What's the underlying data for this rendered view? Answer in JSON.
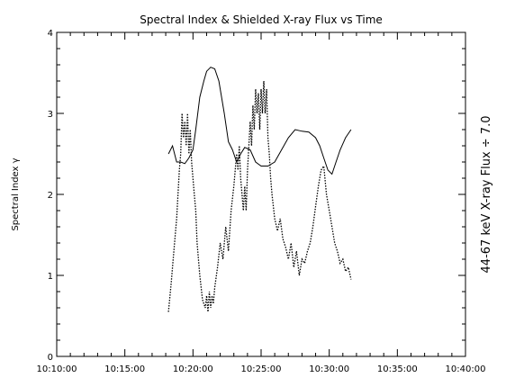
{
  "chart_data": {
    "type": "line",
    "title": "Spectral Index & Shielded X-ray Flux vs Time",
    "ylabel": "Spectral Index γ",
    "ylabel_right": "44-67 keV X-ray Flux ÷ 7.0",
    "xlim": [
      610,
      640
    ],
    "ylim": [
      0,
      4
    ],
    "x_unit": "minutes after 10:00:00",
    "x_ticks": [
      {
        "value": 610,
        "label": "10:10:00"
      },
      {
        "value": 615,
        "label": "10:15:00"
      },
      {
        "value": 620,
        "label": "10:20:00"
      },
      {
        "value": 625,
        "label": "10:25:00"
      },
      {
        "value": 630,
        "label": "10:30:00"
      },
      {
        "value": 635,
        "label": "10:35:00"
      },
      {
        "value": 640,
        "label": "10:40:00"
      }
    ],
    "y_ticks": [
      {
        "value": 0,
        "label": "0"
      },
      {
        "value": 1,
        "label": "1"
      },
      {
        "value": 2,
        "label": "2"
      },
      {
        "value": 3,
        "label": "3"
      },
      {
        "value": 4,
        "label": "4"
      }
    ],
    "grid": false,
    "series": [
      {
        "style": "solid",
        "x": [
          618.2,
          618.5,
          618.8,
          619.1,
          619.4,
          619.7,
          620.0,
          620.2,
          620.5,
          620.8,
          621.0,
          621.3,
          621.6,
          621.9,
          622.3,
          622.6,
          622.9,
          623.2,
          623.5,
          623.8,
          624.2,
          624.6,
          625.0,
          625.5,
          626.0,
          626.5,
          627.0,
          627.5,
          628.0,
          628.5,
          629.0,
          629.3,
          629.6,
          629.9,
          630.2,
          630.5,
          630.8,
          631.2,
          631.6
        ],
        "y": [
          2.5,
          2.6,
          2.4,
          2.4,
          2.38,
          2.45,
          2.55,
          2.8,
          3.2,
          3.4,
          3.52,
          3.57,
          3.55,
          3.4,
          3.0,
          2.65,
          2.55,
          2.4,
          2.5,
          2.58,
          2.55,
          2.4,
          2.35,
          2.35,
          2.4,
          2.55,
          2.7,
          2.8,
          2.78,
          2.77,
          2.7,
          2.6,
          2.45,
          2.3,
          2.25,
          2.4,
          2.55,
          2.7,
          2.8
        ]
      },
      {
        "style": "dotted",
        "x": [
          618.2,
          618.4,
          618.6,
          618.8,
          619.0,
          619.1,
          619.2,
          619.3,
          619.4,
          619.5,
          619.6,
          619.7,
          619.8,
          619.9,
          620.0,
          620.1,
          620.2,
          620.3,
          620.5,
          620.7,
          620.9,
          621.0,
          621.1,
          621.2,
          621.3,
          621.4,
          621.5,
          621.6,
          621.8,
          622.0,
          622.2,
          622.4,
          622.6,
          622.8,
          623.0,
          623.2,
          623.3,
          623.4,
          623.5,
          623.6,
          623.7,
          623.8,
          623.9,
          624.0,
          624.1,
          624.2,
          624.3,
          624.4,
          624.5,
          624.6,
          624.7,
          624.8,
          624.9,
          625.0,
          625.1,
          625.2,
          625.3,
          625.4,
          625.5,
          625.6,
          625.7,
          625.8,
          626.0,
          626.2,
          626.4,
          626.6,
          626.8,
          627.0,
          627.2,
          627.4,
          627.6,
          627.8,
          628.0,
          628.2,
          628.4,
          628.6,
          628.8,
          629.0,
          629.2,
          629.4,
          629.6,
          629.8,
          630.0,
          630.2,
          630.4,
          630.6,
          630.8,
          631.0,
          631.2,
          631.4,
          631.6
        ],
        "y": [
          0.55,
          0.9,
          1.3,
          1.7,
          2.3,
          2.5,
          3.0,
          2.7,
          2.9,
          2.6,
          3.0,
          2.5,
          2.8,
          2.4,
          2.2,
          2.0,
          1.8,
          1.4,
          1.0,
          0.7,
          0.6,
          0.75,
          0.55,
          0.8,
          0.6,
          0.75,
          0.65,
          0.85,
          1.1,
          1.4,
          1.2,
          1.6,
          1.3,
          1.8,
          2.1,
          2.5,
          2.3,
          2.6,
          2.2,
          2.0,
          1.8,
          2.1,
          1.8,
          2.3,
          2.6,
          2.9,
          2.6,
          3.1,
          2.8,
          3.3,
          3.0,
          3.25,
          2.8,
          3.3,
          3.0,
          3.4,
          3.0,
          3.3,
          2.7,
          2.5,
          2.2,
          2.0,
          1.7,
          1.55,
          1.7,
          1.45,
          1.35,
          1.2,
          1.4,
          1.1,
          1.3,
          1.0,
          1.2,
          1.15,
          1.3,
          1.4,
          1.6,
          1.85,
          2.1,
          2.3,
          2.35,
          2.0,
          1.8,
          1.6,
          1.4,
          1.3,
          1.15,
          1.2,
          1.05,
          1.1,
          0.95
        ]
      }
    ]
  }
}
